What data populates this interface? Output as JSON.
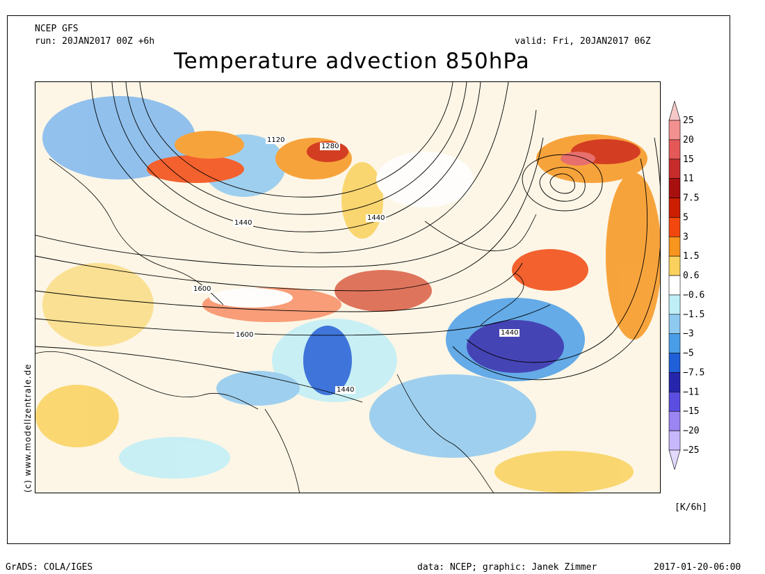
{
  "header": {
    "model": "NCEP GFS",
    "run": "run: 20JAN2017 00Z +6h",
    "valid": "valid: Fri, 20JAN2017 06Z",
    "title": "Temperature advection 850hPa"
  },
  "side_credit": "(c) www.modellzentrale.de",
  "unit": "[K/6h]",
  "footer": {
    "grads": "GrADS: COLA/IGES",
    "credit": "data: NCEP; graphic: Janek Zimmer",
    "timestamp": "2017-01-20-06:00"
  },
  "contour_labels": [
    "1120",
    "1280",
    "1440",
    "1440",
    "1600",
    "1600",
    "1440",
    "1440"
  ],
  "legend": {
    "labels": [
      "25",
      "20",
      "15",
      "11",
      "7.5",
      "5",
      "3",
      "1.5",
      "0.6",
      "-0.6",
      "-1.5",
      "-3",
      "-5",
      "-7.5",
      "-11",
      "-15",
      "-20",
      "-25"
    ],
    "colors": [
      "#f6c8c8",
      "#f39090",
      "#e45858",
      "#c72c2c",
      "#a80f0f",
      "#cc1e00",
      "#f2480f",
      "#f7951f",
      "#f9d15c",
      "#ffffff",
      "#bfeef7",
      "#8fc9f0",
      "#4a9ee8",
      "#1f5fd8",
      "#2626ad",
      "#5b4ee0",
      "#9b85f2",
      "#c7b7fb",
      "#e2d9ff"
    ]
  }
}
